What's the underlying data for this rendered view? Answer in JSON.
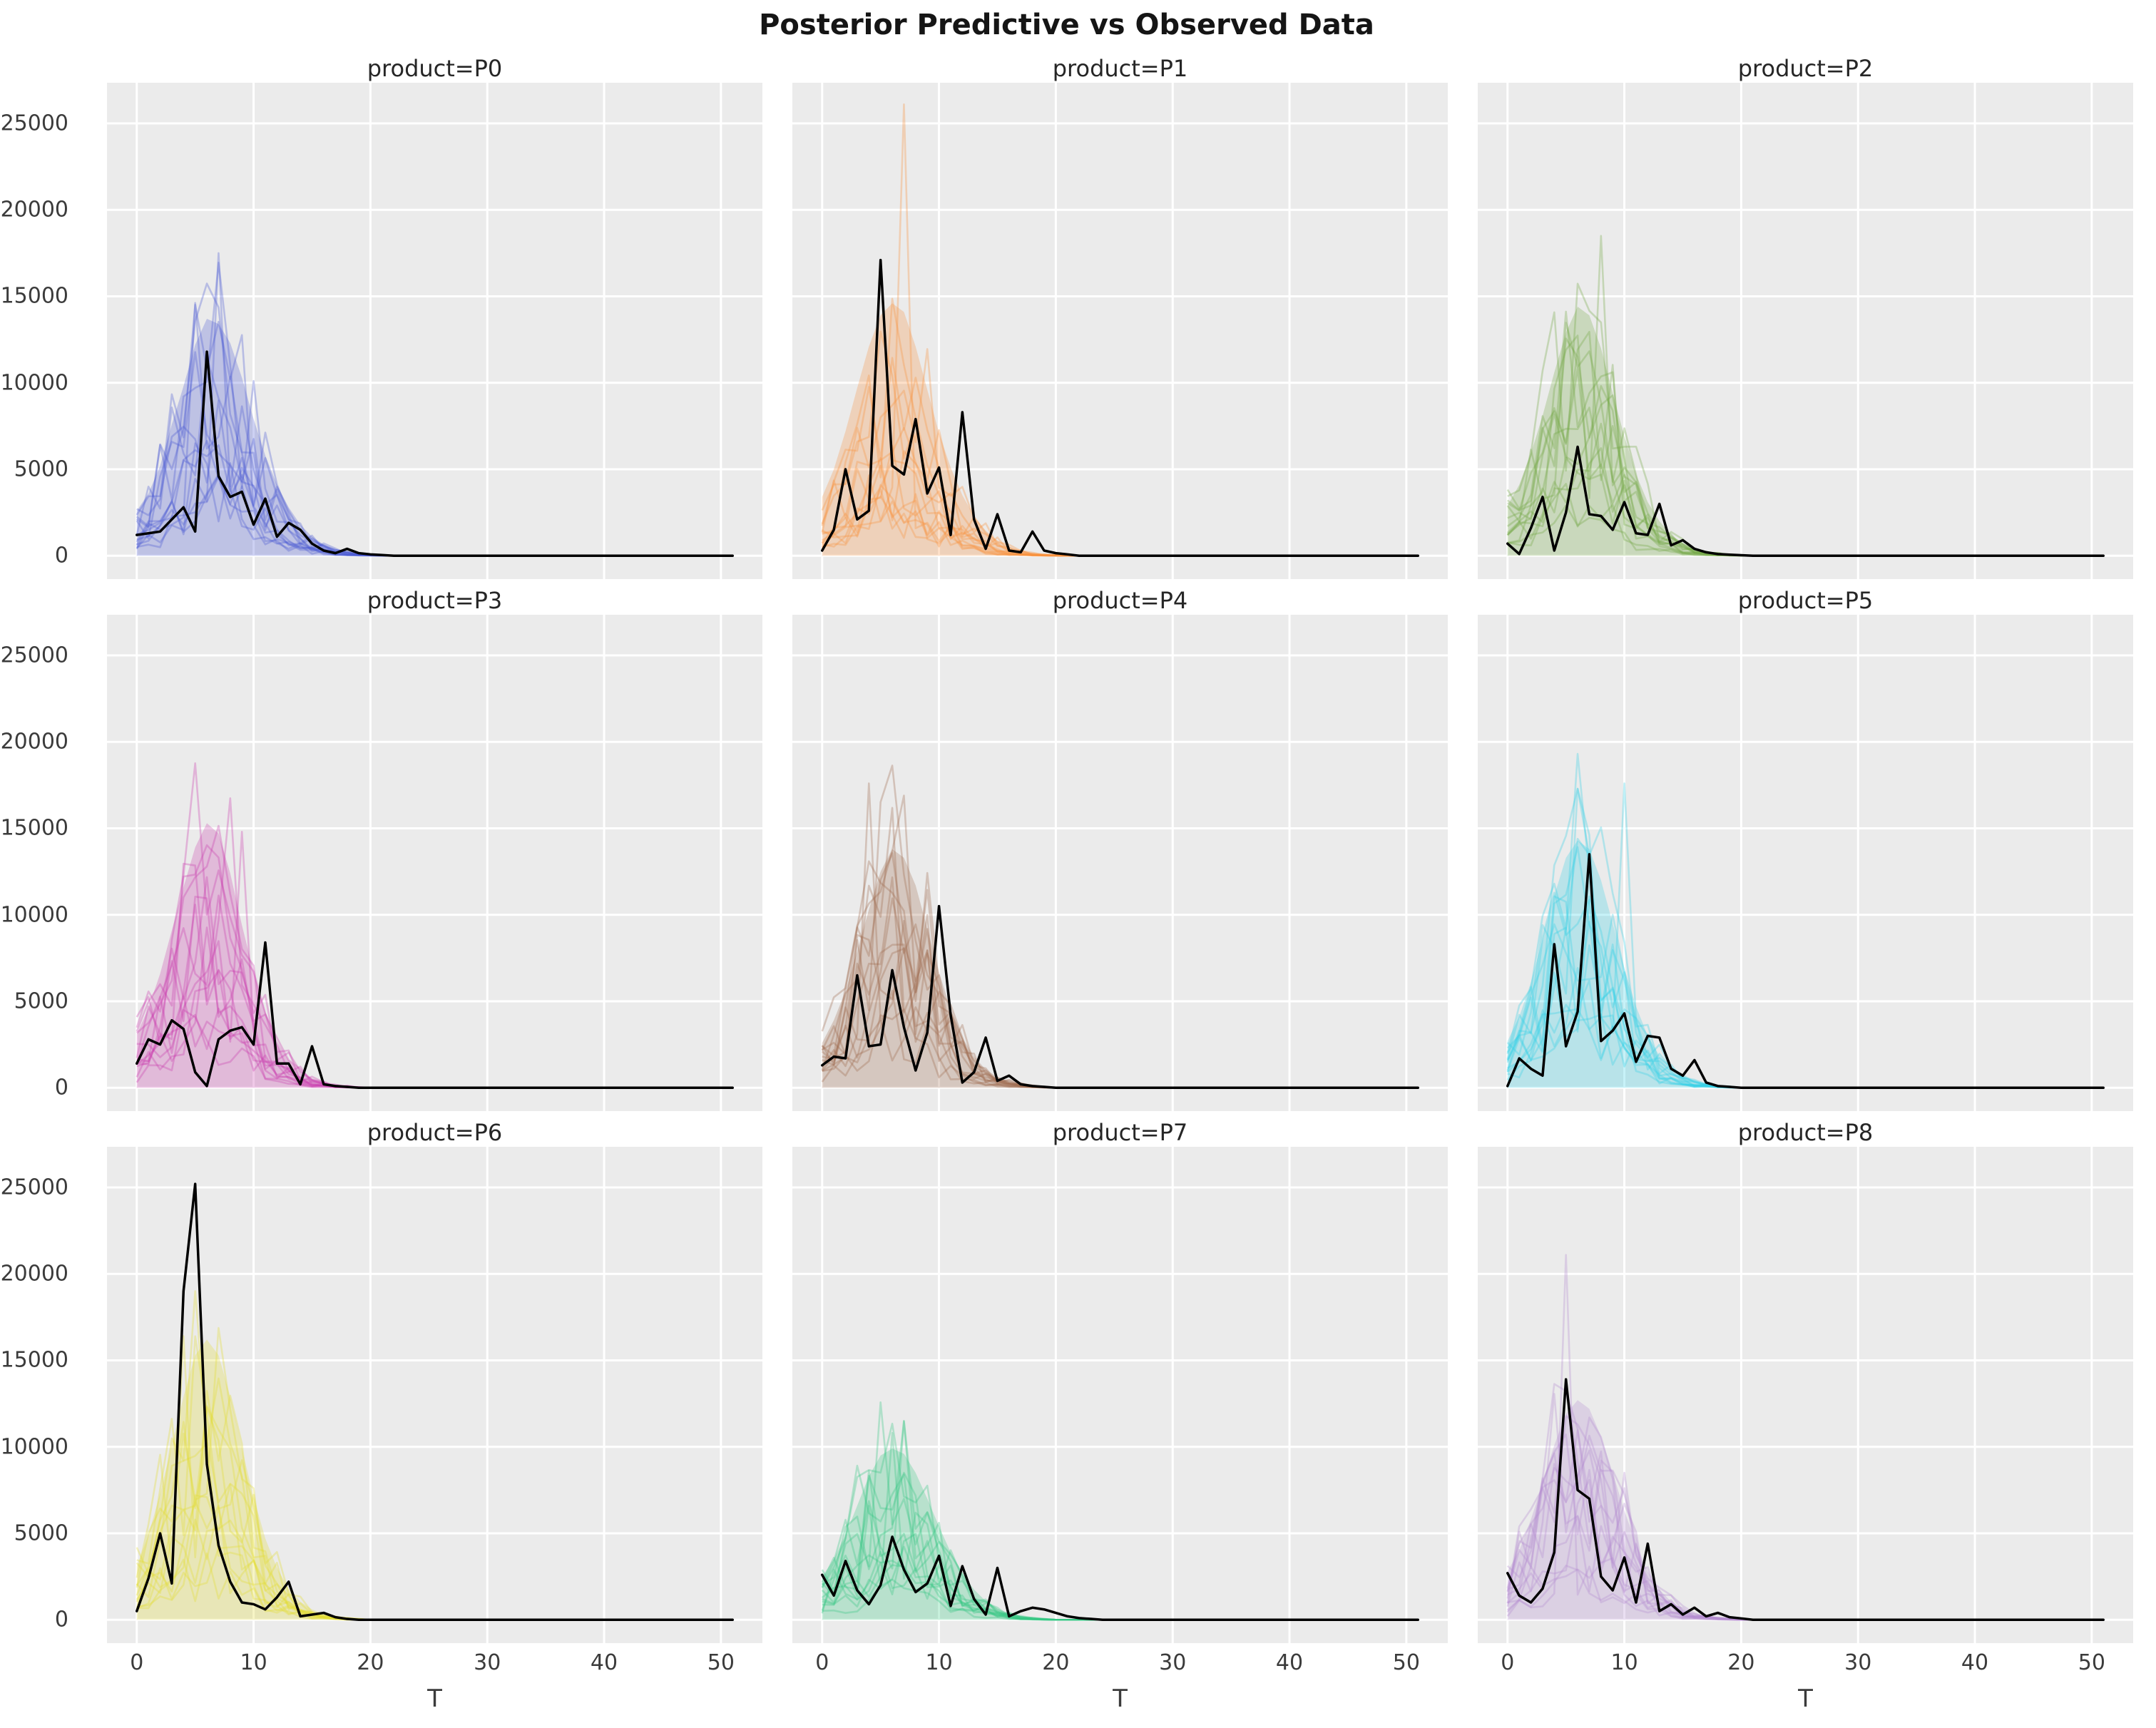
{
  "figure": {
    "title": "Posterior Predictive vs Observed Data",
    "xlabel": "T",
    "background_color": "#ffffff",
    "panel_background_color": "#ebebeb",
    "grid_color": "#ffffff",
    "observed_line_color": "#000000",
    "tick_label_color": "#3b3b3b"
  },
  "axes": {
    "x_ticks": [
      0,
      10,
      20,
      30,
      40,
      50
    ],
    "y_ticks": [
      0,
      5000,
      10000,
      15000,
      20000,
      25000
    ],
    "x_domain": [
      -2.55,
      53.55
    ],
    "y_domain": [
      -1350,
      27350
    ],
    "t_max": 51,
    "grid": true,
    "legend": false,
    "layout": "3x3 grid, shared x and y axes, y tick labels on left column only, x tick labels on bottom row only"
  },
  "chart_data": [
    {
      "type": "line",
      "product": "P0",
      "title": "product=P0",
      "color": "#4c5bd4",
      "observed": [
        1200,
        1300,
        1400,
        2100,
        2800,
        1400,
        11800,
        4600,
        3400,
        3700,
        1800,
        3300,
        1100,
        1900,
        1500,
        700,
        300,
        150,
        400,
        150,
        80,
        40,
        0
      ],
      "envelope_upper": [
        2600,
        3600,
        5200,
        7600,
        9800,
        12200,
        13700,
        13400,
        12300,
        10300,
        7900,
        5800,
        4100,
        2800,
        1800,
        1100,
        650,
        380,
        220,
        130,
        70,
        30,
        0
      ],
      "n_sample_lines": 14,
      "sample_spike": {
        "t": 7,
        "value": 17500
      }
    },
    {
      "type": "line",
      "product": "P1",
      "title": "product=P1",
      "color": "#f9913d",
      "observed": [
        300,
        1500,
        5000,
        2100,
        2600,
        17100,
        5200,
        4700,
        7900,
        3600,
        5100,
        1200,
        8300,
        2100,
        400,
        2400,
        300,
        200,
        1400,
        300,
        150,
        80,
        0
      ],
      "envelope_upper": [
        3400,
        5000,
        7200,
        9700,
        12100,
        13900,
        14600,
        14100,
        12100,
        9600,
        7100,
        5100,
        3500,
        2300,
        1450,
        880,
        520,
        300,
        170,
        90,
        40,
        0
      ],
      "n_sample_lines": 14,
      "sample_spike": {
        "t": 7,
        "value": 26100
      }
    },
    {
      "type": "line",
      "product": "P2",
      "title": "product=P2",
      "color": "#74a943",
      "observed": [
        700,
        100,
        1600,
        3400,
        300,
        2500,
        6300,
        2400,
        2300,
        1500,
        3100,
        1300,
        1200,
        3000,
        600,
        900,
        400,
        200,
        100,
        60,
        30,
        0
      ],
      "envelope_upper": [
        2900,
        4100,
        5900,
        8100,
        10600,
        12900,
        14400,
        13900,
        12000,
        9400,
        6900,
        4700,
        3100,
        2000,
        1200,
        720,
        420,
        240,
        130,
        70,
        30,
        0
      ],
      "n_sample_lines": 14,
      "sample_spike": {
        "t": 8,
        "value": 18500
      }
    },
    {
      "type": "line",
      "product": "P3",
      "title": "product=P3",
      "color": "#c93cad",
      "observed": [
        1400,
        2800,
        2500,
        3900,
        3400,
        900,
        100,
        2800,
        3300,
        3500,
        2500,
        8400,
        1400,
        1400,
        200,
        2400,
        200,
        100,
        50,
        0
      ],
      "envelope_upper": [
        3100,
        4600,
        6600,
        9100,
        11600,
        13900,
        15300,
        14700,
        12400,
        9400,
        6700,
        4400,
        2700,
        1600,
        950,
        550,
        310,
        170,
        90,
        40,
        0
      ],
      "n_sample_lines": 14,
      "sample_spike": {
        "t": 9,
        "value": 14800
      }
    },
    {
      "type": "line",
      "product": "P4",
      "title": "product=P4",
      "color": "#9e6a4f",
      "observed": [
        1300,
        1800,
        1700,
        6500,
        2400,
        2500,
        6800,
        3500,
        1000,
        3200,
        10500,
        4200,
        300,
        900,
        2900,
        400,
        700,
        200,
        100,
        50,
        0
      ],
      "envelope_upper": [
        2600,
        3900,
        5600,
        7900,
        10300,
        12500,
        13800,
        13300,
        11700,
        9200,
        6700,
        4500,
        2900,
        1800,
        1050,
        620,
        360,
        200,
        110,
        60,
        0
      ],
      "n_sample_lines": 14,
      "sample_spike": {
        "t": 4,
        "value": 17600
      }
    },
    {
      "type": "line",
      "product": "P5",
      "title": "product=P5",
      "color": "#35d0e7",
      "observed": [
        100,
        1700,
        1100,
        700,
        8300,
        2400,
        4400,
        13500,
        2700,
        3300,
        4300,
        1500,
        3000,
        2900,
        1100,
        700,
        1600,
        300,
        100,
        50,
        0
      ],
      "envelope_upper": [
        2700,
        4100,
        6100,
        8600,
        11100,
        13300,
        14300,
        13800,
        12000,
        9500,
        6900,
        4700,
        3000,
        1850,
        1100,
        650,
        380,
        210,
        110,
        60,
        0
      ],
      "n_sample_lines": 14,
      "sample_spike": {
        "t": 10,
        "value": 17600
      }
    },
    {
      "type": "line",
      "product": "P6",
      "title": "product=P6",
      "color": "#e3dc32",
      "observed": [
        500,
        2400,
        5000,
        2100,
        19000,
        25200,
        9000,
        4300,
        2200,
        1000,
        900,
        600,
        1300,
        2200,
        200,
        300,
        400,
        150,
        50,
        0
      ],
      "envelope_upper": [
        3100,
        4900,
        7300,
        10100,
        12900,
        15300,
        16200,
        15300,
        12900,
        9900,
        7100,
        4700,
        3000,
        1800,
        1050,
        600,
        340,
        190,
        100,
        50,
        0
      ],
      "n_sample_lines": 14,
      "sample_spike": {
        "t": 4,
        "value": 16400
      }
    },
    {
      "type": "line",
      "product": "P7",
      "title": "product=P7",
      "color": "#35c883",
      "observed": [
        2600,
        1400,
        3400,
        1700,
        900,
        2000,
        4800,
        2900,
        1600,
        2100,
        3700,
        800,
        3100,
        1200,
        300,
        3000,
        200,
        500,
        700,
        600,
        400,
        200,
        100,
        50,
        0
      ],
      "envelope_upper": [
        2500,
        3500,
        4900,
        6600,
        8300,
        9500,
        9900,
        9600,
        8500,
        7000,
        5400,
        3900,
        2700,
        1750,
        1080,
        640,
        370,
        210,
        120,
        60,
        0
      ],
      "n_sample_lines": 14,
      "sample_spike": {
        "t": 6,
        "value": 10800
      }
    },
    {
      "type": "line",
      "product": "P8",
      "title": "product=P8",
      "color": "#b48bd1",
      "observed": [
        2700,
        1400,
        1000,
        1800,
        3900,
        13900,
        7500,
        7000,
        2500,
        1700,
        3600,
        1000,
        4400,
        500,
        900,
        300,
        700,
        200,
        400,
        150,
        80,
        0
      ],
      "envelope_upper": [
        2800,
        4000,
        5800,
        7900,
        10100,
        11900,
        12700,
        12200,
        10600,
        8500,
        6300,
        4400,
        2800,
        1750,
        1050,
        620,
        350,
        200,
        110,
        60,
        0
      ],
      "n_sample_lines": 14,
      "sample_spike": {
        "t": 5,
        "value": 21100
      }
    }
  ]
}
